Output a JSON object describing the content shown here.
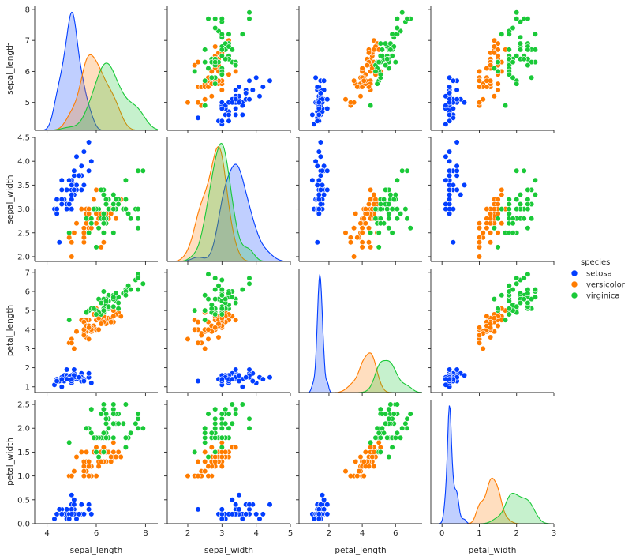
{
  "chart_data": {
    "type": "scatter",
    "kind": "pairplot",
    "variables": [
      "sepal_length",
      "sepal_width",
      "petal_length",
      "petal_width"
    ],
    "diagonal": "kde",
    "legend": {
      "title": "species",
      "placement": "right-center"
    },
    "grid": false,
    "species": [
      {
        "name": "setosa",
        "color": "#023eff"
      },
      {
        "name": "versicolor",
        "color": "#ff7c00"
      },
      {
        "name": "virginica",
        "color": "#1ac938"
      }
    ],
    "ranges": {
      "sepal_length": {
        "lim": [
          3.5,
          8.5
        ],
        "ticks": [
          4,
          6,
          8
        ],
        "ylim": [
          4.1,
          8.1
        ],
        "yticks": [
          5,
          6,
          7,
          8
        ]
      },
      "sepal_width": {
        "lim": [
          1.4,
          5.0
        ],
        "ticks": [
          2,
          3,
          4,
          5
        ],
        "ylim": [
          1.9,
          4.5
        ],
        "yticks": [
          2.0,
          2.5,
          3.0,
          3.5,
          4.0,
          4.5
        ]
      },
      "petal_length": {
        "lim": [
          0.2,
          7.6
        ],
        "ticks": [
          2,
          4,
          6
        ],
        "ylim": [
          0.7,
          7.2
        ],
        "yticks": [
          1,
          2,
          3,
          4,
          5,
          6,
          7
        ]
      },
      "petal_width": {
        "lim": [
          -0.3,
          3.0
        ],
        "ticks": [
          0,
          1,
          2,
          3
        ],
        "ylim": [
          0.0,
          2.6
        ],
        "yticks": [
          0.0,
          0.5,
          1.0,
          1.5,
          2.0,
          2.5
        ]
      }
    },
    "points": {
      "setosa": {
        "sepal_length": [
          5.1,
          4.9,
          4.7,
          4.6,
          5.0,
          5.4,
          4.6,
          5.0,
          4.4,
          4.9,
          5.4,
          4.8,
          4.8,
          4.3,
          5.8,
          5.7,
          5.4,
          5.1,
          5.7,
          5.1,
          5.4,
          5.1,
          4.6,
          5.1,
          4.8,
          5.0,
          5.0,
          5.2,
          5.2,
          4.7,
          4.8,
          5.4,
          5.2,
          5.5,
          4.9,
          5.0,
          5.5,
          4.9,
          4.4,
          5.1,
          5.0,
          4.5,
          4.4,
          5.0,
          5.1,
          4.8,
          5.1,
          4.6,
          5.3,
          5.0
        ],
        "sepal_width": [
          3.5,
          3.0,
          3.2,
          3.1,
          3.6,
          3.9,
          3.4,
          3.4,
          2.9,
          3.1,
          3.7,
          3.4,
          3.0,
          3.0,
          4.0,
          4.4,
          3.9,
          3.5,
          3.8,
          3.8,
          3.4,
          3.7,
          3.6,
          3.3,
          3.4,
          3.0,
          3.4,
          3.5,
          3.4,
          3.2,
          3.1,
          3.4,
          4.1,
          4.2,
          3.1,
          3.2,
          3.5,
          3.6,
          3.0,
          3.4,
          3.5,
          2.3,
          3.2,
          3.5,
          3.8,
          3.0,
          3.8,
          3.2,
          3.7,
          3.3
        ],
        "petal_length": [
          1.4,
          1.4,
          1.3,
          1.5,
          1.4,
          1.7,
          1.4,
          1.5,
          1.4,
          1.5,
          1.5,
          1.6,
          1.4,
          1.1,
          1.2,
          1.5,
          1.3,
          1.4,
          1.7,
          1.5,
          1.7,
          1.5,
          1.0,
          1.7,
          1.9,
          1.6,
          1.6,
          1.5,
          1.4,
          1.6,
          1.6,
          1.5,
          1.5,
          1.4,
          1.5,
          1.2,
          1.3,
          1.4,
          1.3,
          1.5,
          1.3,
          1.3,
          1.3,
          1.6,
          1.9,
          1.4,
          1.6,
          1.4,
          1.5,
          1.4
        ],
        "petal_width": [
          0.2,
          0.2,
          0.2,
          0.2,
          0.2,
          0.4,
          0.3,
          0.2,
          0.2,
          0.1,
          0.2,
          0.2,
          0.1,
          0.1,
          0.2,
          0.4,
          0.4,
          0.3,
          0.3,
          0.3,
          0.2,
          0.4,
          0.2,
          0.5,
          0.2,
          0.2,
          0.4,
          0.2,
          0.2,
          0.2,
          0.2,
          0.4,
          0.1,
          0.2,
          0.2,
          0.2,
          0.2,
          0.1,
          0.2,
          0.2,
          0.3,
          0.3,
          0.2,
          0.6,
          0.4,
          0.3,
          0.2,
          0.2,
          0.2,
          0.2
        ]
      },
      "versicolor": {
        "sepal_length": [
          7.0,
          6.4,
          6.9,
          5.5,
          6.5,
          5.7,
          6.3,
          4.9,
          6.6,
          5.2,
          5.0,
          5.9,
          6.0,
          6.1,
          5.6,
          6.7,
          5.6,
          5.8,
          6.2,
          5.6,
          5.9,
          6.1,
          6.3,
          6.1,
          6.4,
          6.6,
          6.8,
          6.7,
          6.0,
          5.7,
          5.5,
          5.5,
          5.8,
          6.0,
          5.4,
          6.0,
          6.7,
          6.3,
          5.6,
          5.5,
          5.5,
          6.1,
          5.8,
          5.0,
          5.6,
          5.7,
          5.7,
          6.2,
          5.1,
          5.7
        ],
        "sepal_width": [
          3.2,
          3.2,
          3.1,
          2.3,
          2.8,
          2.8,
          3.3,
          2.4,
          2.9,
          2.7,
          2.0,
          3.0,
          2.2,
          2.9,
          2.9,
          3.1,
          3.0,
          2.7,
          2.2,
          2.5,
          3.2,
          2.8,
          2.5,
          2.8,
          2.9,
          3.0,
          2.8,
          3.0,
          2.9,
          2.6,
          2.4,
          2.4,
          2.7,
          2.7,
          3.0,
          3.4,
          3.1,
          2.3,
          3.0,
          2.5,
          2.6,
          3.0,
          2.6,
          2.3,
          2.7,
          3.0,
          2.9,
          2.9,
          2.5,
          2.8
        ],
        "petal_length": [
          4.7,
          4.5,
          4.9,
          4.0,
          4.6,
          4.5,
          4.7,
          3.3,
          4.6,
          3.9,
          3.5,
          4.2,
          4.0,
          4.7,
          3.6,
          4.4,
          4.5,
          4.1,
          4.5,
          3.9,
          4.8,
          4.0,
          4.9,
          4.7,
          4.3,
          4.4,
          4.8,
          5.0,
          4.5,
          3.5,
          3.8,
          3.7,
          3.9,
          5.1,
          4.5,
          4.5,
          4.7,
          4.4,
          4.1,
          4.0,
          4.4,
          4.6,
          4.0,
          3.3,
          4.2,
          4.2,
          4.2,
          4.3,
          3.0,
          4.1
        ],
        "petal_width": [
          1.4,
          1.5,
          1.5,
          1.3,
          1.5,
          1.3,
          1.6,
          1.0,
          1.3,
          1.4,
          1.0,
          1.5,
          1.0,
          1.4,
          1.3,
          1.4,
          1.5,
          1.0,
          1.5,
          1.1,
          1.8,
          1.3,
          1.5,
          1.2,
          1.3,
          1.4,
          1.4,
          1.7,
          1.5,
          1.0,
          1.1,
          1.0,
          1.2,
          1.6,
          1.5,
          1.6,
          1.5,
          1.3,
          1.3,
          1.3,
          1.2,
          1.4,
          1.2,
          1.0,
          1.3,
          1.2,
          1.3,
          1.3,
          1.1,
          1.3
        ]
      },
      "virginica": {
        "sepal_length": [
          6.3,
          5.8,
          7.1,
          6.3,
          6.5,
          7.6,
          4.9,
          7.3,
          6.7,
          7.2,
          6.5,
          6.4,
          6.8,
          5.7,
          5.8,
          6.4,
          6.5,
          7.7,
          7.7,
          6.0,
          6.9,
          5.6,
          7.7,
          6.3,
          6.7,
          7.2,
          6.2,
          6.1,
          6.4,
          7.2,
          7.4,
          7.9,
          6.4,
          6.3,
          6.1,
          7.7,
          6.3,
          6.4,
          6.0,
          6.9,
          6.7,
          6.9,
          5.8,
          6.8,
          6.7,
          6.7,
          6.3,
          6.5,
          6.2,
          5.9
        ],
        "sepal_width": [
          3.3,
          2.7,
          3.0,
          2.9,
          3.0,
          3.0,
          2.5,
          2.9,
          2.5,
          3.6,
          3.2,
          2.7,
          3.0,
          2.5,
          2.8,
          3.2,
          3.0,
          3.8,
          2.6,
          2.2,
          3.2,
          2.8,
          2.8,
          2.7,
          3.3,
          3.2,
          2.8,
          3.0,
          2.8,
          3.0,
          2.8,
          3.8,
          2.8,
          2.8,
          2.6,
          3.0,
          3.4,
          3.1,
          3.0,
          3.1,
          3.1,
          3.1,
          2.7,
          3.2,
          3.3,
          3.0,
          2.5,
          3.0,
          3.4,
          3.0
        ],
        "petal_length": [
          6.0,
          5.1,
          5.9,
          5.6,
          5.8,
          6.6,
          4.5,
          6.3,
          5.8,
          6.1,
          5.1,
          5.3,
          5.5,
          5.0,
          5.1,
          5.3,
          5.5,
          6.7,
          6.9,
          5.0,
          5.7,
          4.9,
          6.7,
          4.9,
          5.7,
          6.0,
          4.8,
          4.9,
          5.6,
          5.8,
          6.1,
          6.4,
          5.6,
          5.1,
          5.6,
          6.1,
          5.6,
          5.5,
          4.8,
          5.4,
          5.6,
          5.1,
          5.1,
          5.9,
          5.7,
          5.2,
          5.0,
          5.2,
          5.4,
          5.1
        ],
        "petal_width": [
          2.5,
          1.9,
          2.1,
          1.8,
          2.2,
          2.1,
          1.7,
          1.8,
          1.8,
          2.5,
          2.0,
          1.9,
          2.1,
          2.0,
          2.4,
          2.3,
          1.8,
          2.2,
          2.3,
          1.5,
          2.3,
          2.0,
          2.0,
          1.8,
          2.1,
          1.8,
          1.8,
          1.8,
          2.1,
          1.6,
          1.9,
          2.0,
          2.2,
          1.5,
          1.4,
          2.3,
          2.4,
          1.8,
          1.8,
          2.1,
          2.4,
          2.3,
          1.9,
          2.3,
          2.5,
          2.3,
          1.9,
          2.0,
          2.3,
          1.8
        ]
      }
    }
  }
}
